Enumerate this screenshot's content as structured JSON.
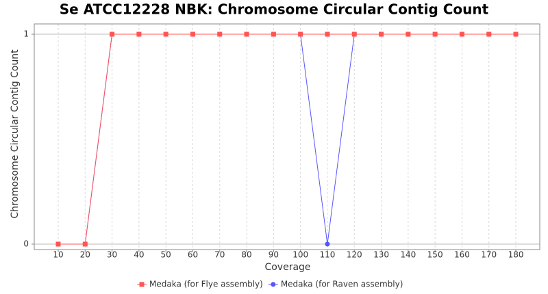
{
  "chart_data": {
    "type": "line",
    "title": "Se ATCC12228 NBK: Chromosome Circular Contig Count",
    "x_label": "Coverage",
    "y_label": "Chromosome Circular Contig Count",
    "x": [
      10,
      20,
      30,
      40,
      50,
      60,
      70,
      80,
      90,
      100,
      110,
      120,
      130,
      140,
      150,
      160,
      170,
      180
    ],
    "series": [
      {
        "name": "Medaka (for Flye assembly)",
        "color": "#ff5555",
        "marker": "square",
        "values": [
          0,
          0,
          1,
          1,
          1,
          1,
          1,
          1,
          1,
          1,
          1,
          1,
          1,
          1,
          1,
          1,
          1,
          1
        ]
      },
      {
        "name": "Medaka (for Raven assembly)",
        "color": "#5555ff",
        "marker": "circle",
        "values": [
          0,
          0,
          1,
          1,
          1,
          1,
          1,
          1,
          1,
          1,
          0,
          1,
          1,
          1,
          1,
          1,
          1,
          1
        ]
      }
    ],
    "xlim": [
      1.1,
      188.9
    ],
    "xticks": [
      10,
      20,
      30,
      40,
      50,
      60,
      70,
      80,
      90,
      100,
      110,
      120,
      130,
      140,
      150,
      160,
      170,
      180
    ],
    "ylim": [
      -0.026,
      1.049
    ],
    "yticks": [
      0,
      1
    ],
    "grid": true,
    "legend": "bottom"
  }
}
